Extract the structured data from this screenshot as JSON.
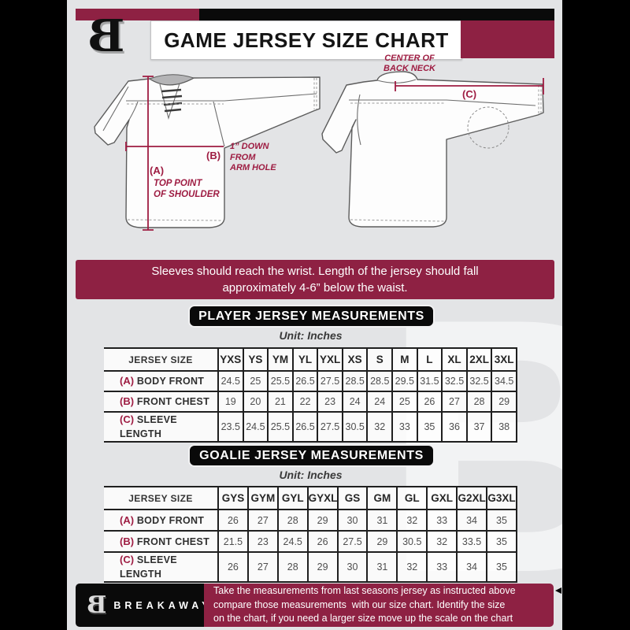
{
  "colors": {
    "maroon": "#8e2143",
    "annotation": "#9e1c42",
    "background": "#e3e4e6",
    "black": "#0a0a0a"
  },
  "header": {
    "title": "GAME JERSEY SIZE CHART",
    "logo_letter": "B"
  },
  "diagram": {
    "back_neck_caption": "CENTER OF\nBACK NECK",
    "c_label": "(C)",
    "b_label": "(B)",
    "b_caption": "1” DOWN\nFROM\nARM HOLE",
    "a_label": "(A)",
    "a_caption": "TOP POINT\nOF SHOULDER"
  },
  "banner": {
    "line1": "Sleeves should reach the wrist. Length of the jersey should fall",
    "line2": "approximately 4-6” below the waist."
  },
  "player_section": {
    "title": "PLAYER JERSEY MEASUREMENTS",
    "unit": "Unit: Inches"
  },
  "player_table": {
    "header_label": "JERSEY SIZE",
    "sizes": [
      "YXS",
      "YS",
      "YM",
      "YL",
      "YXL",
      "XS",
      "S",
      "M",
      "L",
      "XL",
      "2XL",
      "3XL"
    ],
    "rows": [
      {
        "key": "(A)",
        "label": "BODY FRONT",
        "values": [
          "24.5",
          "25",
          "25.5",
          "26.5",
          "27.5",
          "28.5",
          "28.5",
          "29.5",
          "31.5",
          "32.5",
          "32.5",
          "34.5"
        ]
      },
      {
        "key": "(B)",
        "label": "FRONT CHEST",
        "values": [
          "19",
          "20",
          "21",
          "22",
          "23",
          "24",
          "24",
          "25",
          "26",
          "27",
          "28",
          "29"
        ]
      },
      {
        "key": "(C)",
        "label": "SLEEVE LENGTH",
        "values": [
          "23.5",
          "24.5",
          "25.5",
          "26.5",
          "27.5",
          "30.5",
          "32",
          "33",
          "35",
          "36",
          "37",
          "38"
        ]
      }
    ]
  },
  "goalie_section": {
    "title": "GOALIE JERSEY MEASUREMENTS",
    "unit": "Unit: Inches"
  },
  "goalie_table": {
    "header_label": "JERSEY SIZE",
    "sizes": [
      "GYS",
      "GYM",
      "GYL",
      "GYXL",
      "GS",
      "GM",
      "GL",
      "GXL",
      "G2XL",
      "G3XL"
    ],
    "rows": [
      {
        "key": "(A)",
        "label": "BODY FRONT",
        "values": [
          "26",
          "27",
          "28",
          "29",
          "30",
          "31",
          "32",
          "33",
          "34",
          "35"
        ]
      },
      {
        "key": "(B)",
        "label": "FRONT CHEST",
        "values": [
          "21.5",
          "23",
          "24.5",
          "26",
          "27.5",
          "29",
          "30.5",
          "32",
          "33.5",
          "35"
        ]
      },
      {
        "key": "(C)",
        "label": "SLEEVE LENGTH",
        "values": [
          "26",
          "27",
          "28",
          "29",
          "30",
          "31",
          "32",
          "33",
          "34",
          "35"
        ]
      }
    ]
  },
  "footer": {
    "brand": "BREAKAWAY",
    "logo_letter": "B",
    "line1": "Take the measurements from last seasons jersey as instructed above",
    "line2": "compare those measurements  with our size chart. Identify the size",
    "line3": "on the chart, if you need a larger size move up the scale on the chart"
  },
  "watermark_letter": "B"
}
